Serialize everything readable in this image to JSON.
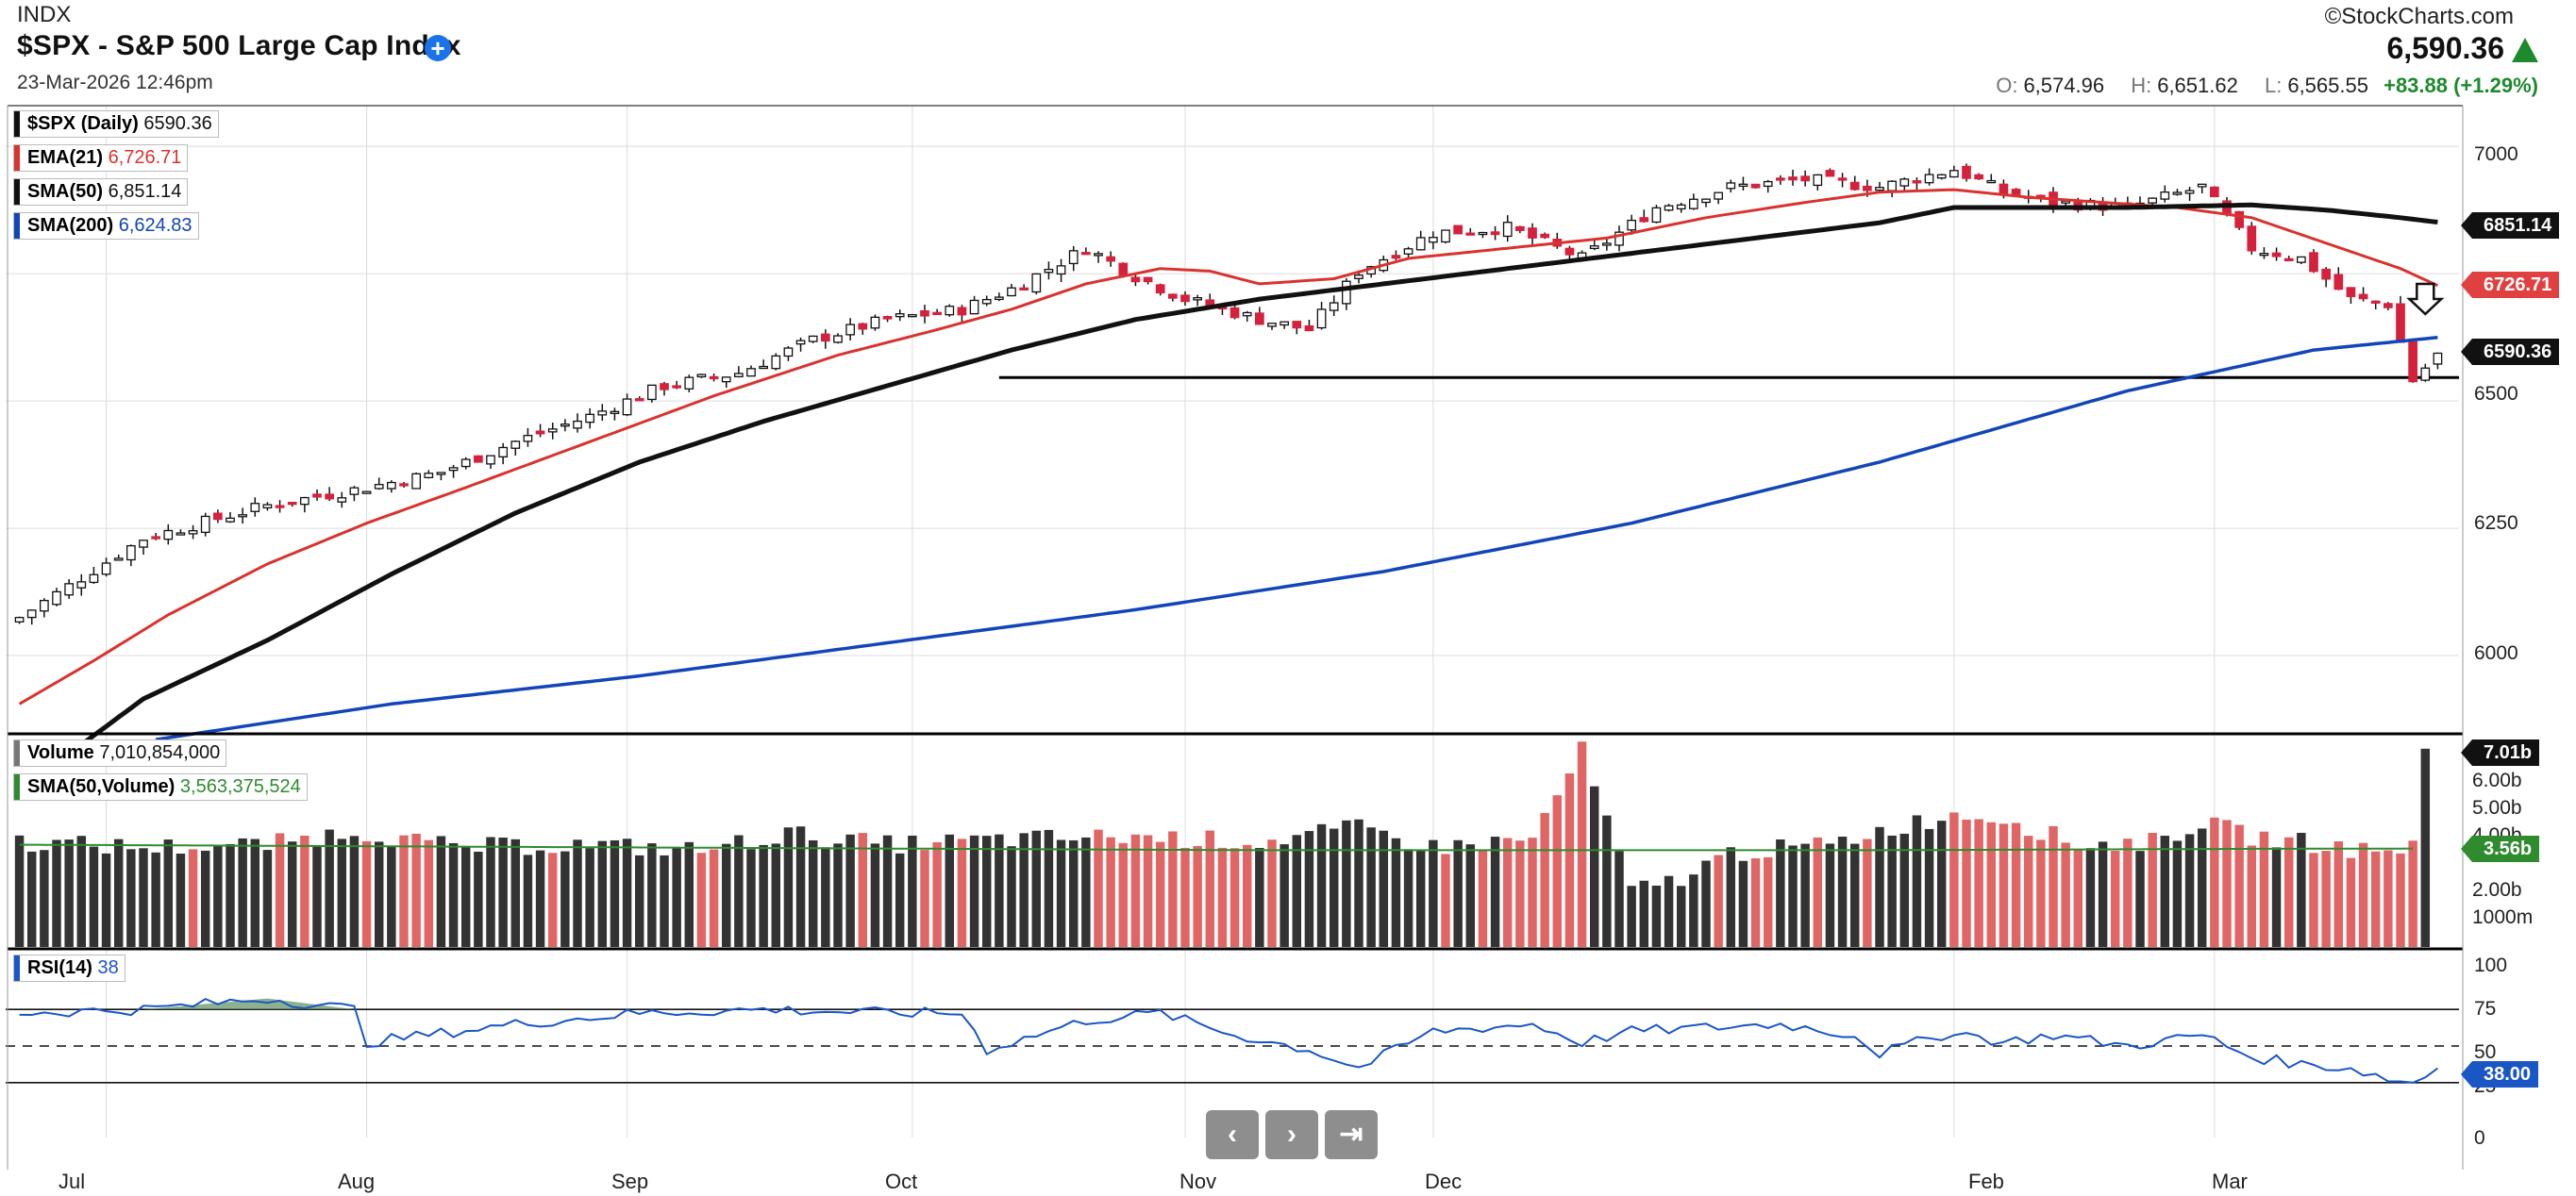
{
  "header": {
    "exchange": "INDX",
    "title": "$SPX - S&P 500 Large Cap Index",
    "date": "23-Mar-2026 12:46pm",
    "brand": "©StockCharts.com",
    "last": "6,590.36",
    "open_label": "O:",
    "open": "6,574.96",
    "high_label": "H:",
    "high": "6,651.62",
    "low_label": "L:",
    "low": "6,565.55",
    "change": "+83.88 (+1.29%)"
  },
  "legend": {
    "price": {
      "name": "$SPX (Daily)",
      "value": "6590.36"
    },
    "ema21": {
      "name": "EMA(21)",
      "value": "6,726.71"
    },
    "sma50": {
      "name": "SMA(50)",
      "value": "6,851.14"
    },
    "sma200": {
      "name": "SMA(200)",
      "value": "6,624.83"
    },
    "volume": {
      "name": "Volume",
      "value": "7,010,854,000"
    },
    "vol_sma": {
      "name": "SMA(50,Volume)",
      "value": "3,563,375,524"
    },
    "rsi": {
      "name": "RSI(14)",
      "value": "38"
    }
  },
  "colors": {
    "up": "#111111",
    "down": "#d6213c",
    "vol_up": "#333333",
    "vol_down": "#e06666",
    "ema21": "#d9332f",
    "sma50": "#111111",
    "sma200": "#1245b8",
    "vol_sma": "#2e8b2e",
    "rsi": "#1a56c4",
    "rsi_fill": "#5f8f5f"
  },
  "badges": {
    "sma50": "6851.14",
    "ema21": "6726.71",
    "price": "6590.36",
    "volume": "7.01b",
    "vol_sma": "3.56b",
    "rsi": "38.00"
  },
  "nav": {
    "prev_icon": "chevron-left-icon",
    "next_icon": "chevron-right-icon",
    "end_icon": "skip-end-icon"
  },
  "chart_data": {
    "type": "candlestick",
    "x_labels": [
      "Jul",
      "Aug",
      "Sep",
      "Oct",
      "Nov",
      "Dec",
      "Feb",
      "Mar"
    ],
    "price_ticks": [
      "7000",
      "6500",
      "6250",
      "6000"
    ],
    "volume_ticks": [
      "6.00b",
      "5.00b",
      "4.00b",
      "2.00b",
      "1000m"
    ],
    "rsi_ticks": [
      "100",
      "75",
      "50",
      "25",
      "0"
    ],
    "price_ylim": [
      5850,
      7080
    ],
    "volume_ylim": [
      0,
      7.3
    ],
    "rsi_ylim": [
      0,
      100
    ],
    "support_level": 6546,
    "rsi_overbought": 70,
    "rsi_oversold": 30,
    "rsi_mid": 50,
    "x_label_index": [
      7,
      28,
      49,
      72,
      94,
      114,
      156,
      177
    ],
    "anchors": {
      "close": [
        [
          0,
          6075
        ],
        [
          10,
          6230
        ],
        [
          20,
          6295
        ],
        [
          28,
          6330
        ],
        [
          34,
          6360
        ],
        [
          40,
          6420
        ],
        [
          46,
          6470
        ],
        [
          52,
          6530
        ],
        [
          58,
          6555
        ],
        [
          64,
          6620
        ],
        [
          70,
          6660
        ],
        [
          76,
          6680
        ],
        [
          80,
          6720
        ],
        [
          86,
          6800
        ],
        [
          90,
          6745
        ],
        [
          94,
          6700
        ],
        [
          100,
          6660
        ],
        [
          104,
          6640
        ],
        [
          108,
          6755
        ],
        [
          114,
          6830
        ],
        [
          120,
          6840
        ],
        [
          126,
          6780
        ],
        [
          132,
          6880
        ],
        [
          138,
          6920
        ],
        [
          144,
          6935
        ],
        [
          150,
          6920
        ],
        [
          156,
          6955
        ],
        [
          160,
          6910
        ],
        [
          164,
          6890
        ],
        [
          170,
          6880
        ],
        [
          176,
          6920
        ],
        [
          180,
          6800
        ],
        [
          184,
          6780
        ],
        [
          188,
          6700
        ],
        [
          191,
          6690
        ],
        [
          193,
          6540
        ],
        [
          195,
          6590.36
        ]
      ],
      "ema21": [
        [
          0,
          5905
        ],
        [
          6,
          5990
        ],
        [
          12,
          6080
        ],
        [
          20,
          6180
        ],
        [
          28,
          6260
        ],
        [
          36,
          6330
        ],
        [
          46,
          6420
        ],
        [
          56,
          6510
        ],
        [
          66,
          6590
        ],
        [
          74,
          6640
        ],
        [
          80,
          6680
        ],
        [
          86,
          6730
        ],
        [
          92,
          6760
        ],
        [
          96,
          6755
        ],
        [
          100,
          6730
        ],
        [
          106,
          6740
        ],
        [
          112,
          6780
        ],
        [
          120,
          6800
        ],
        [
          128,
          6820
        ],
        [
          136,
          6860
        ],
        [
          144,
          6890
        ],
        [
          150,
          6910
        ],
        [
          156,
          6915
        ],
        [
          162,
          6900
        ],
        [
          168,
          6890
        ],
        [
          174,
          6880
        ],
        [
          180,
          6860
        ],
        [
          186,
          6810
        ],
        [
          192,
          6760
        ],
        [
          195,
          6726.71
        ]
      ],
      "sma50": [
        [
          5,
          5825
        ],
        [
          10,
          5915
        ],
        [
          20,
          6030
        ],
        [
          30,
          6160
        ],
        [
          40,
          6280
        ],
        [
          50,
          6380
        ],
        [
          60,
          6460
        ],
        [
          70,
          6530
        ],
        [
          80,
          6600
        ],
        [
          90,
          6660
        ],
        [
          100,
          6700
        ],
        [
          110,
          6730
        ],
        [
          120,
          6760
        ],
        [
          130,
          6790
        ],
        [
          140,
          6820
        ],
        [
          150,
          6850
        ],
        [
          156,
          6880
        ],
        [
          162,
          6880
        ],
        [
          170,
          6880
        ],
        [
          180,
          6885
        ],
        [
          186,
          6875
        ],
        [
          192,
          6860
        ],
        [
          195,
          6851.14
        ]
      ],
      "sma200": [
        [
          11,
          5835
        ],
        [
          30,
          5905
        ],
        [
          50,
          5960
        ],
        [
          70,
          6025
        ],
        [
          90,
          6090
        ],
        [
          110,
          6165
        ],
        [
          130,
          6260
        ],
        [
          150,
          6380
        ],
        [
          170,
          6520
        ],
        [
          185,
          6600
        ],
        [
          195,
          6624.83
        ]
      ],
      "rsi": [
        [
          0,
          68
        ],
        [
          10,
          70
        ],
        [
          20,
          76
        ],
        [
          27,
          70
        ],
        [
          28,
          52
        ],
        [
          40,
          62
        ],
        [
          50,
          68
        ],
        [
          60,
          70
        ],
        [
          70,
          68
        ],
        [
          76,
          68
        ],
        [
          78,
          48
        ],
        [
          86,
          64
        ],
        [
          92,
          68
        ],
        [
          98,
          56
        ],
        [
          104,
          48
        ],
        [
          108,
          38
        ],
        [
          114,
          58
        ],
        [
          122,
          62
        ],
        [
          126,
          52
        ],
        [
          130,
          58
        ],
        [
          136,
          60
        ],
        [
          142,
          62
        ],
        [
          148,
          56
        ],
        [
          150,
          46
        ],
        [
          156,
          58
        ],
        [
          160,
          52
        ],
        [
          164,
          56
        ],
        [
          170,
          50
        ],
        [
          176,
          56
        ],
        [
          180,
          44
        ],
        [
          184,
          40
        ],
        [
          188,
          38
        ],
        [
          191,
          32
        ],
        [
          193,
          30
        ],
        [
          195,
          38
        ]
      ],
      "volume": [
        [
          0,
          3.8
        ],
        [
          10,
          3.6
        ],
        [
          20,
          3.7
        ],
        [
          27,
          4.2
        ],
        [
          35,
          3.6
        ],
        [
          45,
          3.7
        ],
        [
          55,
          3.5
        ],
        [
          62,
          4.1
        ],
        [
          70,
          3.7
        ],
        [
          80,
          3.9
        ],
        [
          90,
          4.0
        ],
        [
          100,
          3.8
        ],
        [
          108,
          4.3
        ],
        [
          114,
          3.6
        ],
        [
          122,
          3.9
        ],
        [
          126,
          7.1
        ],
        [
          130,
          2.0
        ],
        [
          134,
          2.5
        ],
        [
          138,
          3.4
        ],
        [
          146,
          3.7
        ],
        [
          150,
          4.2
        ],
        [
          156,
          4.8
        ],
        [
          160,
          4.7
        ],
        [
          166,
          3.7
        ],
        [
          172,
          3.8
        ],
        [
          176,
          4.5
        ],
        [
          180,
          4.0
        ],
        [
          186,
          3.7
        ],
        [
          190,
          3.4
        ],
        [
          193,
          3.7
        ],
        [
          194,
          7.01
        ]
      ],
      "vol_sma": [
        [
          0,
          3.7
        ],
        [
          50,
          3.6
        ],
        [
          100,
          3.5
        ],
        [
          150,
          3.5
        ],
        [
          180,
          3.55
        ],
        [
          193,
          3.56
        ]
      ]
    },
    "bar_count": 196
  }
}
